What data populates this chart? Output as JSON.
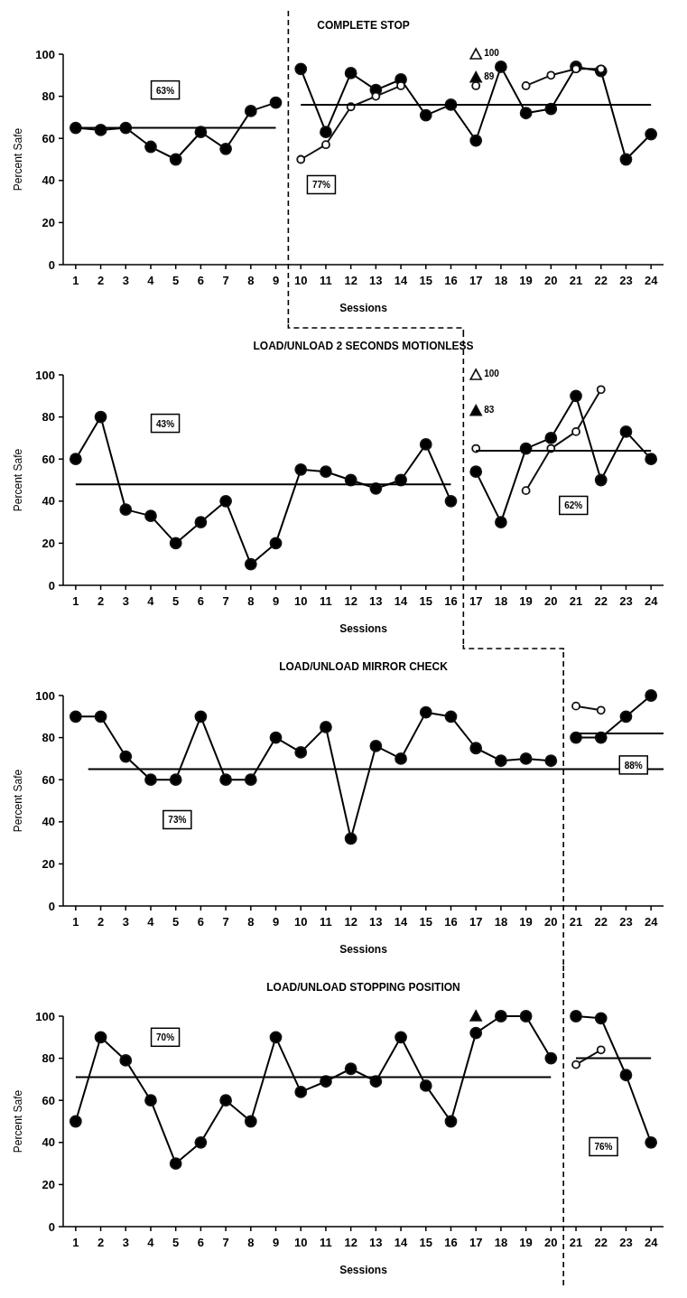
{
  "chart_data": [
    {
      "type": "line",
      "title": "COMPLETE STOP",
      "xlabel": "Sessions",
      "ylabel": "Percent Safe",
      "xlim": [
        0.5,
        24.5
      ],
      "xticks": [
        1,
        2,
        3,
        4,
        5,
        6,
        7,
        8,
        9,
        10,
        11,
        12,
        13,
        14,
        15,
        16,
        17,
        18,
        19,
        20,
        21,
        22,
        23,
        24
      ],
      "ylim": [
        0,
        100
      ],
      "yticks": [
        0,
        20,
        40,
        60,
        80,
        100
      ],
      "grid": false,
      "annotations": [
        "63%",
        "77%"
      ],
      "ref_lines": [
        {
          "axis": "x",
          "value": 9.5,
          "color": "#000000",
          "line_style": "dashed"
        }
      ],
      "series": [
        {
          "type": "line",
          "marker": "circle",
          "color": "#000000",
          "x": [
            1,
            2,
            3,
            4,
            5,
            6,
            7,
            8,
            9
          ],
          "values": [
            65,
            64,
            65,
            56,
            50,
            63,
            55,
            73,
            77
          ]
        },
        {
          "type": "line",
          "marker": "circle",
          "color": "#000000",
          "x": [
            10,
            11,
            12,
            13,
            14,
            15,
            16,
            17,
            18,
            19,
            20,
            21,
            22,
            23,
            24
          ],
          "values": [
            93,
            63,
            91,
            83,
            88,
            71,
            76,
            59,
            94,
            72,
            74,
            94,
            92,
            50,
            62
          ]
        },
        {
          "type": "line",
          "marker": "circle",
          "color": "#ffffff",
          "x": [
            10,
            11,
            12,
            13,
            14,
            15,
            17,
            18,
            19,
            20,
            21,
            22
          ],
          "values": [
            50,
            57,
            75,
            80,
            85,
            null,
            85,
            null,
            85,
            90,
            93,
            93
          ]
        },
        {
          "type": "scatter",
          "marker": "triangle",
          "color": "#ffffff",
          "x": [
            17
          ],
          "values": [
            100
          ],
          "value_labels": [
            "100"
          ]
        },
        {
          "type": "scatter",
          "marker": "triangle",
          "color": "#000000",
          "x": [
            17
          ],
          "values": [
            89
          ],
          "value_labels": [
            "89"
          ]
        },
        {
          "type": "line",
          "marker": "none",
          "color": "#000000",
          "x": [
            1,
            9
          ],
          "values": [
            65,
            65
          ]
        },
        {
          "type": "line",
          "marker": "none",
          "color": "#000000",
          "x": [
            10,
            24
          ],
          "values": [
            76,
            76
          ]
        }
      ]
    },
    {
      "type": "line",
      "title": "LOAD/UNLOAD 2 SECONDS MOTIONLESS",
      "xlabel": "Sessions",
      "ylabel": "Percent Safe",
      "xlim": [
        0.5,
        24.5
      ],
      "xticks": [
        1,
        2,
        3,
        4,
        5,
        6,
        7,
        8,
        9,
        10,
        11,
        12,
        13,
        14,
        15,
        16,
        17,
        18,
        19,
        20,
        21,
        22,
        23,
        24
      ],
      "ylim": [
        0,
        100
      ],
      "yticks": [
        0,
        20,
        40,
        60,
        80,
        100
      ],
      "grid": false,
      "annotations": [
        "43%",
        "62%"
      ],
      "ref_lines": [
        {
          "axis": "x",
          "value": 16.5,
          "color": "#000000",
          "line_style": "dashed"
        }
      ],
      "series": [
        {
          "type": "line",
          "marker": "circle",
          "color": "#000000",
          "x": [
            1,
            2,
            3,
            4,
            5,
            6,
            7,
            8,
            9,
            10,
            11,
            12,
            13,
            14,
            15,
            16
          ],
          "values": [
            60,
            80,
            36,
            33,
            20,
            30,
            40,
            10,
            20,
            55,
            54,
            50,
            46,
            50,
            67,
            40
          ]
        },
        {
          "type": "line",
          "marker": "circle",
          "color": "#000000",
          "x": [
            17,
            18,
            19,
            20,
            21,
            22,
            23,
            24
          ],
          "values": [
            54,
            30,
            65,
            70,
            90,
            50,
            73,
            60
          ]
        },
        {
          "type": "line",
          "marker": "circle",
          "color": "#ffffff",
          "x": [
            17,
            18,
            19,
            20,
            21,
            22
          ],
          "values": [
            65,
            null,
            45,
            65,
            73,
            93
          ]
        },
        {
          "type": "scatter",
          "marker": "triangle",
          "color": "#ffffff",
          "x": [
            17
          ],
          "values": [
            100
          ],
          "value_labels": [
            "100"
          ]
        },
        {
          "type": "scatter",
          "marker": "triangle",
          "color": "#000000",
          "x": [
            17
          ],
          "values": [
            83
          ],
          "value_labels": [
            "83"
          ]
        },
        {
          "type": "line",
          "marker": "none",
          "color": "#000000",
          "x": [
            1,
            16
          ],
          "values": [
            48,
            48
          ]
        },
        {
          "type": "line",
          "marker": "none",
          "color": "#000000",
          "x": [
            17,
            24
          ],
          "values": [
            64,
            64
          ]
        }
      ]
    },
    {
      "type": "line",
      "title": "LOAD/UNLOAD MIRROR CHECK",
      "xlabel": "Sessions",
      "ylabel": "Percent Safe",
      "xlim": [
        0.5,
        24.5
      ],
      "xticks": [
        1,
        2,
        3,
        4,
        5,
        6,
        7,
        8,
        9,
        10,
        11,
        12,
        13,
        14,
        15,
        16,
        17,
        18,
        19,
        20,
        21,
        22,
        23,
        24
      ],
      "ylim": [
        0,
        100
      ],
      "yticks": [
        0,
        20,
        40,
        60,
        80,
        100
      ],
      "grid": false,
      "annotations": [
        "73%",
        "88%"
      ],
      "ref_lines": [
        {
          "axis": "x",
          "value": 20.5,
          "color": "#000000",
          "line_style": "dashed"
        }
      ],
      "series": [
        {
          "type": "line",
          "marker": "circle",
          "color": "#000000",
          "x": [
            1,
            2,
            3,
            4,
            5,
            6,
            7,
            8,
            9,
            10,
            11,
            12,
            13,
            14,
            15,
            16,
            17,
            18,
            19,
            20
          ],
          "values": [
            90,
            90,
            71,
            60,
            60,
            90,
            60,
            60,
            80,
            73,
            85,
            32,
            76,
            70,
            92,
            90,
            75,
            69,
            70,
            69
          ]
        },
        {
          "type": "line",
          "marker": "circle",
          "color": "#000000",
          "x": [
            21,
            22,
            23,
            24
          ],
          "values": [
            80,
            80,
            90,
            100
          ]
        },
        {
          "type": "line",
          "marker": "circle",
          "color": "#ffffff",
          "x": [
            21,
            22
          ],
          "values": [
            95,
            93
          ]
        },
        {
          "type": "line",
          "marker": "none",
          "color": "#000000",
          "x": [
            1.5,
            24.5
          ],
          "values": [
            65,
            65
          ]
        },
        {
          "type": "line",
          "marker": "none",
          "color": "#000000",
          "x": [
            21,
            24.5
          ],
          "values": [
            82,
            82
          ]
        }
      ]
    },
    {
      "type": "line",
      "title": "LOAD/UNLOAD STOPPING POSITION",
      "xlabel": "Sessions",
      "ylabel": "Percent Safe",
      "xlim": [
        0.5,
        24.5
      ],
      "xticks": [
        1,
        2,
        3,
        4,
        5,
        6,
        7,
        8,
        9,
        10,
        11,
        12,
        13,
        14,
        15,
        16,
        17,
        18,
        19,
        20,
        21,
        22,
        23,
        24
      ],
      "ylim": [
        0,
        100
      ],
      "yticks": [
        0,
        20,
        40,
        60,
        80,
        100
      ],
      "grid": false,
      "annotations": [
        "70%",
        "76%"
      ],
      "ref_lines": [
        {
          "axis": "x",
          "value": 20.5,
          "color": "#000000",
          "line_style": "dashed"
        }
      ],
      "series": [
        {
          "type": "line",
          "marker": "circle",
          "color": "#000000",
          "x": [
            1,
            2,
            3,
            4,
            5,
            6,
            7,
            8,
            9,
            10,
            11,
            12,
            13,
            14,
            15,
            16,
            17,
            18,
            19,
            20
          ],
          "values": [
            50,
            90,
            79,
            60,
            30,
            40,
            60,
            50,
            90,
            64,
            69,
            75,
            69,
            90,
            67,
            50,
            92,
            100,
            100,
            80
          ]
        },
        {
          "type": "line",
          "marker": "circle",
          "color": "#000000",
          "x": [
            21,
            22,
            23,
            24
          ],
          "values": [
            100,
            99,
            72,
            40
          ]
        },
        {
          "type": "line",
          "marker": "circle",
          "color": "#ffffff",
          "x": [
            21,
            22
          ],
          "values": [
            77,
            84
          ]
        },
        {
          "type": "scatter",
          "marker": "triangle",
          "color": "#000000",
          "x": [
            17
          ],
          "values": [
            100
          ]
        },
        {
          "type": "line",
          "marker": "none",
          "color": "#000000",
          "x": [
            1,
            20
          ],
          "values": [
            71,
            71
          ]
        },
        {
          "type": "line",
          "marker": "none",
          "color": "#000000",
          "x": [
            21,
            24
          ],
          "values": [
            80,
            80
          ]
        }
      ]
    }
  ]
}
